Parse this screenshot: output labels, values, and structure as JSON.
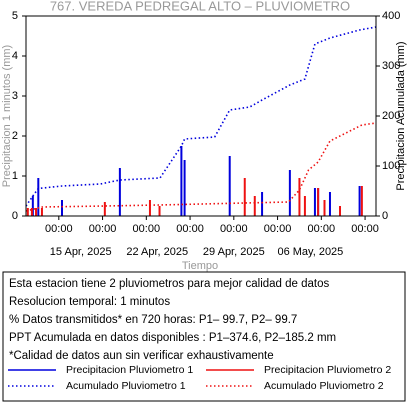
{
  "chart_data": {
    "type": "precip-combo",
    "title": "767. VEREDA PEDREGAL ALTO – PLUVIOMETRO",
    "ylabel": "Precipitacion 1 minutos (mm)",
    "y2label": "Precipitacion Acumulada (mm)",
    "xlabel": "Tiempo",
    "xlim": [
      "2025-04-10 00:00",
      "2025-05-12 00:00"
    ],
    "xticks": [
      {
        "value": "2025-04-13 00:00",
        "label": "00:00"
      },
      {
        "value": "2025-04-17 00:00",
        "label": "00:00"
      },
      {
        "value": "2025-04-21 00:00",
        "label": "00:00"
      },
      {
        "value": "2025-04-25 00:00",
        "label": "00:00"
      },
      {
        "value": "2025-04-29 00:00",
        "label": "00:00"
      },
      {
        "value": "2025-05-03 00:00",
        "label": "00:00"
      },
      {
        "value": "2025-05-07 00:00",
        "label": "00:00"
      },
      {
        "value": "2025-05-11 00:00",
        "label": "00:00"
      }
    ],
    "date_ticks": [
      {
        "value": "2025-04-15 00:00",
        "label": "15 Apr, 2025"
      },
      {
        "value": "2025-04-22 00:00",
        "label": "22 Apr, 2025"
      },
      {
        "value": "2025-04-29 00:00",
        "label": "29 Apr, 2025"
      },
      {
        "value": "2025-05-06 00:00",
        "label": "06 May, 2025"
      }
    ],
    "ylim": [
      0,
      5
    ],
    "yticks": [
      0,
      1,
      2,
      3,
      4,
      5
    ],
    "y2lim": [
      0,
      400
    ],
    "y2ticks": [
      0,
      100,
      200,
      300,
      400
    ],
    "series": [
      {
        "name": "Precipitacion Pluviometro 1",
        "color": "#0000dd",
        "style": "bar",
        "x": [
          "2025-04-10 15:00",
          "2025-04-11 03:00",
          "2025-04-13 07:00",
          "2025-04-18 14:00",
          "2025-04-24 05:00",
          "2025-04-24 12:00",
          "2025-04-28 15:00",
          "2025-05-01 14:00",
          "2025-05-04 03:00",
          "2025-05-06 10:00",
          "2025-05-06 17:00",
          "2025-05-07 19:00",
          "2025-05-10 12:00"
        ],
        "values": [
          0.5,
          0.95,
          0.4,
          1.2,
          1.75,
          1.4,
          1.5,
          0.6,
          1.15,
          0.7,
          0.7,
          0.6,
          0.75
        ]
      },
      {
        "name": "Precipitacion Pluviometro 2",
        "color": "#ee1111",
        "style": "bar",
        "x": [
          "2025-04-10 04:00",
          "2025-04-10 13:00",
          "2025-04-10 22:00",
          "2025-04-11 11:00",
          "2025-04-17 05:00",
          "2025-04-21 08:00",
          "2025-04-22 05:00",
          "2025-04-30 00:00",
          "2025-04-30 22:00",
          "2025-05-05 00:00",
          "2025-05-05 12:00",
          "2025-05-06 17:00",
          "2025-05-07 07:00",
          "2025-05-08 17:00",
          "2025-05-10 17:00"
        ],
        "values": [
          0.2,
          0.2,
          0.2,
          0.2,
          0.35,
          0.4,
          0.25,
          0.95,
          0.5,
          0.95,
          0.5,
          0.7,
          0.4,
          0.25,
          0.75
        ]
      },
      {
        "name": "Acumulado Pluviometro 1",
        "color": "#0000dd",
        "style": "dotted",
        "axis": "y2",
        "x": [
          "2025-04-10 00:00",
          "2025-04-10 15:00",
          "2025-04-11 03:00",
          "2025-04-13 07:00",
          "2025-04-16 19:00",
          "2025-04-18 14:00",
          "2025-04-22 06:00",
          "2025-04-24 05:00",
          "2025-04-24 12:00",
          "2025-04-27 06:00",
          "2025-04-28 15:00",
          "2025-04-30 11:00",
          "2025-05-01 14:00",
          "2025-05-04 03:00",
          "2025-05-05 12:00",
          "2025-05-06 10:00",
          "2025-05-07 19:00",
          "2025-05-10 12:00",
          "2025-05-12 00:00"
        ],
        "values": [
          20,
          40,
          55,
          60,
          64,
          72,
          76,
          140,
          154,
          158,
          212,
          218,
          232,
          262,
          274,
          344,
          356,
          372,
          378
        ]
      },
      {
        "name": "Acumulado Pluviometro 2",
        "color": "#ee1111",
        "style": "dotted",
        "axis": "y2",
        "x": [
          "2025-04-10 00:00",
          "2025-04-11 12:00",
          "2025-04-17 05:00",
          "2025-04-22 05:00",
          "2025-04-30 00:00",
          "2025-05-04 00:00",
          "2025-05-05 00:00",
          "2025-05-05 20:00",
          "2025-05-06 17:00",
          "2025-05-07 19:00",
          "2025-05-08 17:00",
          "2025-05-10 17:00",
          "2025-05-12 00:00"
        ],
        "values": [
          10,
          18,
          20,
          22,
          26,
          28,
          52,
          92,
          108,
          150,
          160,
          182,
          186
        ]
      }
    ],
    "info": [
      "Esta estacion tiene 2 pluviometros para mejor calidad de datos",
      "Resolucion temporal: 1 minutos",
      "% Datos transmitidos* en 720 horas: P1– 99.7, P2– 99.7",
      "PPT Acumulada en datos disponibles : P1–374.6, P2–185.2 mm",
      "*Calidad de datos aun sin verificar exhaustivamente"
    ]
  }
}
